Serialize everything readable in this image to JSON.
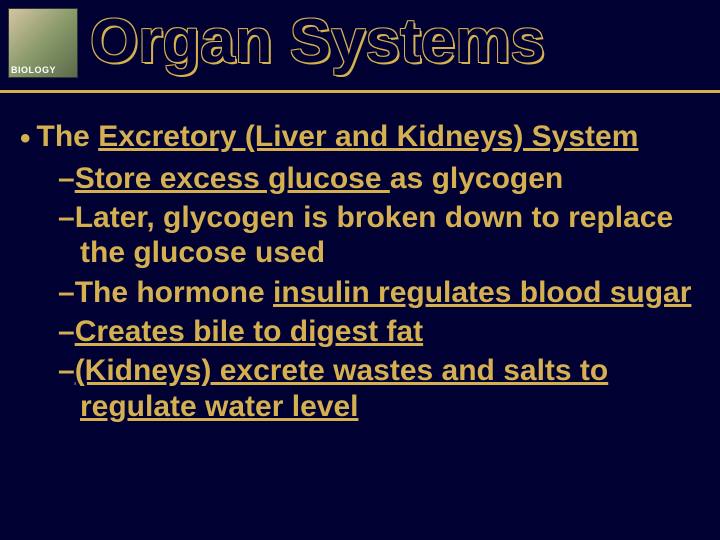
{
  "logo": {
    "label": "BIOLOGY"
  },
  "title": "Organ Systems",
  "colors": {
    "background": "#000033",
    "accent": "#d4b050",
    "text": "#d4b050"
  },
  "main_bullet": {
    "prefix": "The ",
    "underlined": "Excretory (Liver and Kidneys) System"
  },
  "sub_bullets": [
    {
      "parts": [
        {
          "t": "Store excess glucose ",
          "u": true
        },
        {
          "t": "as glycogen",
          "u": false
        }
      ]
    },
    {
      "parts": [
        {
          "t": "Later, glycogen is broken down to replace the glucose used",
          "u": false
        }
      ]
    },
    {
      "parts": [
        {
          "t": "The hormone ",
          "u": false
        },
        {
          "t": "insulin regulates blood sugar",
          "u": true
        }
      ]
    },
    {
      "parts": [
        {
          "t": "Creates bile to digest fat",
          "u": true
        }
      ]
    },
    {
      "parts": [
        {
          "t": "(Kidneys) excrete wastes and salts to regulate water level",
          "u": true
        }
      ]
    }
  ]
}
